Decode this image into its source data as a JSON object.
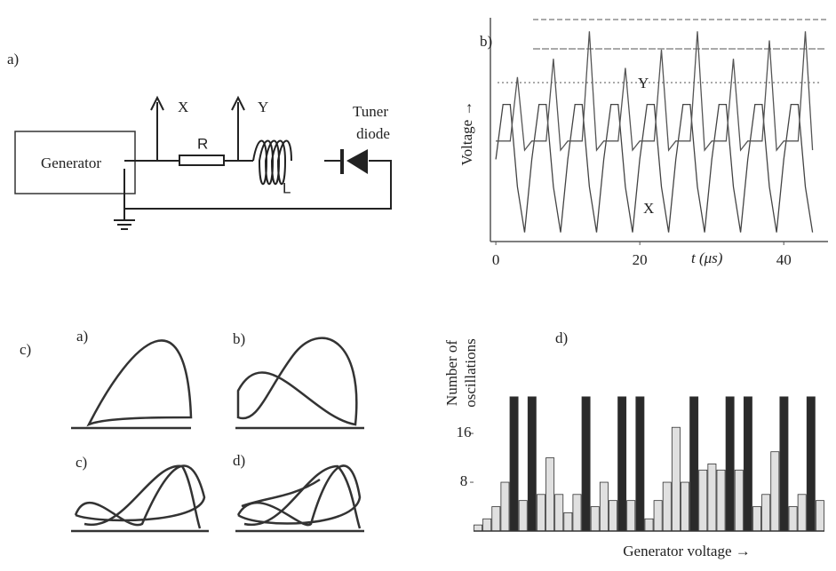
{
  "panel_a": {
    "label": "a)",
    "generator": "Generator",
    "probe_x": "X",
    "probe_y": "Y",
    "resistor": "R",
    "inductor": "L",
    "diode_line1": "Tuner",
    "diode_line2": "diode"
  },
  "panel_c": {
    "label": "c)",
    "sub_a": "a)",
    "sub_b": "b)",
    "sub_c": "c)",
    "sub_d": "d)"
  },
  "chart_data": [
    {
      "type": "line",
      "label": "b)",
      "ylabel": "Voltage →",
      "xlabel": "t (μs)",
      "x": [
        0,
        1,
        2,
        3,
        4,
        5,
        6,
        7,
        8,
        9,
        10,
        11,
        12,
        13,
        14,
        15,
        16,
        17,
        18,
        19,
        20,
        21,
        22,
        23,
        24,
        25,
        26,
        27,
        28,
        29,
        30,
        31,
        32,
        33,
        34,
        35,
        36,
        37,
        38,
        39,
        40,
        41,
        42,
        43,
        44
      ],
      "series": [
        {
          "name": "X",
          "color": "#444",
          "values": [
            4.5,
            7.5,
            7.5,
            3,
            0.5,
            4.5,
            7.5,
            7.5,
            3,
            0.5,
            4.5,
            7.5,
            7.5,
            3,
            0.5,
            4.5,
            7.5,
            7.5,
            3,
            0.5,
            4.5,
            7.5,
            7.5,
            3,
            0.5,
            4.5,
            7.5,
            7.5,
            3,
            0.5,
            4.5,
            7.5,
            7.5,
            3,
            0.5,
            4.5,
            7.5,
            7.5,
            3,
            0.5,
            4.5,
            7.5,
            7.5,
            3,
            0.5
          ]
        },
        {
          "name": "Y",
          "color": "#555",
          "values": [
            5.5,
            5.5,
            5.5,
            9,
            5,
            5.5,
            5.5,
            5.5,
            10,
            5,
            5.5,
            5.5,
            5.5,
            11.5,
            5,
            5.5,
            5.5,
            5.5,
            9.5,
            5,
            5.5,
            5.5,
            5.5,
            10.5,
            5,
            5.5,
            5.5,
            5.5,
            11.5,
            5,
            5.5,
            5.5,
            5.5,
            10,
            5,
            5.5,
            5.5,
            5.5,
            11,
            5,
            5.5,
            5.5,
            5.5,
            11.5,
            5
          ]
        }
      ],
      "xlim": [
        -1,
        45.9
      ],
      "ylim": [
        0,
        12
      ],
      "xticks": [
        0,
        20,
        40
      ]
    },
    {
      "type": "bar",
      "label": "d)",
      "ylabel": [
        "Number of",
        "oscillations"
      ],
      "xlabel": "Generator voltage →",
      "categories": [
        null,
        null,
        null,
        null,
        null,
        null,
        null,
        null,
        null,
        null,
        null,
        null,
        null,
        null,
        null,
        null,
        null,
        null,
        null,
        null,
        null,
        null,
        null,
        null,
        null,
        null,
        null,
        null,
        null,
        null,
        null,
        null,
        null,
        null,
        null,
        null,
        null,
        null,
        null
      ],
      "values": [
        1,
        2,
        4,
        8,
        22,
        5,
        22,
        6,
        12,
        6,
        3,
        6,
        22,
        4,
        8,
        5,
        22,
        5,
        22,
        2,
        5,
        8,
        17,
        8,
        22,
        10,
        11,
        10,
        22,
        10,
        22,
        4,
        6,
        13,
        22,
        4,
        6,
        22,
        5
      ],
      "colors": [
        "#e0e0e0",
        "#e0e0e0",
        "#e0e0e0",
        "#e0e0e0",
        "#2a2a2a",
        "#e0e0e0",
        "#2a2a2a",
        "#e0e0e0",
        "#e0e0e0",
        "#e0e0e0",
        "#e0e0e0",
        "#e0e0e0",
        "#2a2a2a",
        "#e0e0e0",
        "#e0e0e0",
        "#e0e0e0",
        "#2a2a2a",
        "#e0e0e0",
        "#2a2a2a",
        "#e0e0e0",
        "#e0e0e0",
        "#e0e0e0",
        "#e0e0e0",
        "#e0e0e0",
        "#2a2a2a",
        "#e0e0e0",
        "#e0e0e0",
        "#e0e0e0",
        "#2a2a2a",
        "#e0e0e0",
        "#2a2a2a",
        "#e0e0e0",
        "#e0e0e0",
        "#e0e0e0",
        "#2a2a2a",
        "#e0e0e0",
        "#e0e0e0",
        "#2a2a2a",
        "#e0e0e0"
      ],
      "ylim": [
        0,
        23
      ],
      "yticks": [
        8,
        16
      ]
    }
  ]
}
